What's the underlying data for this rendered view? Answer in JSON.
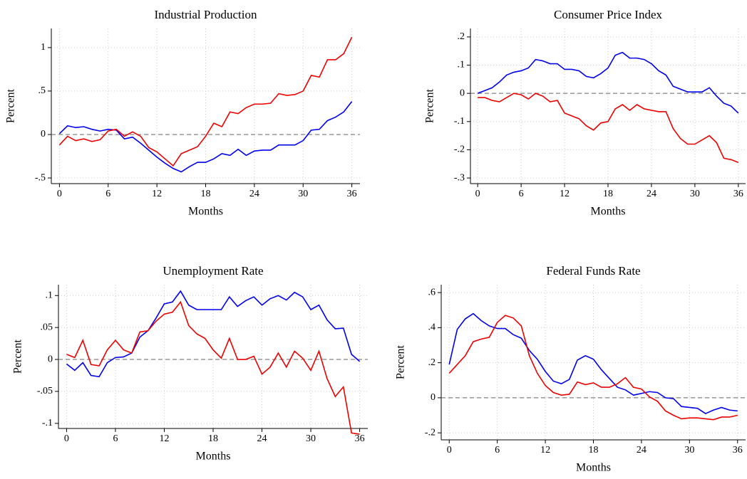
{
  "chart_data": [
    {
      "type": "line",
      "title": "Industrial Production",
      "x_label": "Months",
      "y_label": "Percent",
      "x": [
        0,
        1,
        2,
        3,
        4,
        5,
        6,
        7,
        8,
        9,
        10,
        11,
        12,
        13,
        14,
        15,
        16,
        17,
        18,
        19,
        20,
        21,
        22,
        23,
        24,
        25,
        26,
        27,
        28,
        29,
        30,
        31,
        32,
        33,
        34,
        35,
        36
      ],
      "xlim": [
        -1,
        37
      ],
      "xticks": [
        0,
        6,
        12,
        18,
        24,
        30,
        36
      ],
      "ylim": [
        -0.565,
        1.22
      ],
      "yticks": [
        {
          "value": -0.5,
          "label": "-.5"
        },
        0,
        {
          "value": 0.5,
          "label": ".5"
        },
        1
      ],
      "grid": true,
      "reference_line": 0,
      "series": [
        {
          "color": "#0000ee",
          "values": [
            0.01,
            0.1,
            0.08,
            0.09,
            0.06,
            0.04,
            0.06,
            0.05,
            -0.05,
            -0.03,
            -0.1,
            -0.18,
            -0.26,
            -0.33,
            -0.39,
            -0.43,
            -0.37,
            -0.32,
            -0.32,
            -0.28,
            -0.22,
            -0.24,
            -0.17,
            -0.24,
            -0.19,
            -0.18,
            -0.18,
            -0.12,
            -0.12,
            -0.12,
            -0.07,
            0.05,
            0.06,
            0.16,
            0.2,
            0.26,
            0.38
          ]
        },
        {
          "color": "#ee0000",
          "values": [
            -0.12,
            -0.02,
            -0.07,
            -0.05,
            -0.08,
            -0.06,
            0.04,
            0.06,
            -0.02,
            0.03,
            -0.02,
            -0.15,
            -0.2,
            -0.28,
            -0.36,
            -0.22,
            -0.18,
            -0.14,
            -0.02,
            0.13,
            0.09,
            0.26,
            0.24,
            0.31,
            0.35,
            0.35,
            0.36,
            0.47,
            0.45,
            0.46,
            0.5,
            0.68,
            0.66,
            0.86,
            0.86,
            0.93,
            1.12
          ]
        }
      ]
    },
    {
      "type": "line",
      "title": "Consumer Price Index",
      "x_label": "Months",
      "y_label": "Percent",
      "x": [
        0,
        1,
        2,
        3,
        4,
        5,
        6,
        7,
        8,
        9,
        10,
        11,
        12,
        13,
        14,
        15,
        16,
        17,
        18,
        19,
        20,
        21,
        22,
        23,
        24,
        25,
        26,
        27,
        28,
        29,
        30,
        31,
        32,
        33,
        34,
        35,
        36
      ],
      "xlim": [
        -1,
        37
      ],
      "xticks": [
        0,
        6,
        12,
        18,
        24,
        30,
        36
      ],
      "ylim": [
        -0.32,
        0.23
      ],
      "yticks": [
        {
          "value": -0.3,
          "label": "-.3"
        },
        {
          "value": -0.2,
          "label": "-.2"
        },
        {
          "value": -0.1,
          "label": "-.1"
        },
        0,
        {
          "value": 0.1,
          "label": ".1"
        },
        {
          "value": 0.2,
          "label": ".2"
        }
      ],
      "grid": true,
      "reference_line": 0,
      "series": [
        {
          "color": "#0000ee",
          "values": [
            0.0,
            0.01,
            0.02,
            0.04,
            0.065,
            0.075,
            0.08,
            0.09,
            0.12,
            0.115,
            0.105,
            0.105,
            0.085,
            0.085,
            0.08,
            0.06,
            0.055,
            0.07,
            0.09,
            0.135,
            0.145,
            0.125,
            0.125,
            0.12,
            0.105,
            0.08,
            0.065,
            0.025,
            0.015,
            0.005,
            0.005,
            0.005,
            0.02,
            -0.01,
            -0.035,
            -0.045,
            -0.07
          ]
        },
        {
          "color": "#ee0000",
          "values": [
            -0.015,
            -0.015,
            -0.025,
            -0.03,
            -0.015,
            0.0,
            -0.005,
            -0.02,
            0.0,
            -0.01,
            -0.03,
            -0.025,
            -0.07,
            -0.08,
            -0.09,
            -0.115,
            -0.13,
            -0.105,
            -0.1,
            -0.055,
            -0.04,
            -0.06,
            -0.04,
            -0.055,
            -0.06,
            -0.065,
            -0.065,
            -0.125,
            -0.16,
            -0.18,
            -0.18,
            -0.165,
            -0.15,
            -0.175,
            -0.23,
            -0.235,
            -0.245
          ]
        }
      ]
    },
    {
      "type": "line",
      "title": "Unemployment Rate",
      "x_label": "Months",
      "y_label": "Percent",
      "x": [
        0,
        1,
        2,
        3,
        4,
        5,
        6,
        7,
        8,
        9,
        10,
        11,
        12,
        13,
        14,
        15,
        16,
        17,
        18,
        19,
        20,
        21,
        22,
        23,
        24,
        25,
        26,
        27,
        28,
        29,
        30,
        31,
        32,
        33,
        34,
        35,
        36
      ],
      "xlim": [
        -1,
        37
      ],
      "xticks": [
        0,
        6,
        12,
        18,
        24,
        30,
        36
      ],
      "ylim": [
        -0.108,
        0.117
      ],
      "yticks": [
        {
          "value": -0.1,
          "label": "-.1"
        },
        {
          "value": -0.05,
          "label": "-.05"
        },
        0,
        {
          "value": 0.05,
          "label": ".05"
        },
        {
          "value": 0.1,
          "label": ".1"
        }
      ],
      "grid": true,
      "reference_line": 0,
      "series": [
        {
          "color": "#0000ee",
          "values": [
            -0.007,
            -0.017,
            -0.005,
            -0.025,
            -0.027,
            -0.005,
            0.003,
            0.004,
            0.01,
            0.035,
            0.045,
            0.065,
            0.087,
            0.09,
            0.107,
            0.085,
            0.078,
            0.078,
            0.078,
            0.078,
            0.098,
            0.083,
            0.092,
            0.098,
            0.085,
            0.095,
            0.1,
            0.093,
            0.105,
            0.098,
            0.078,
            0.085,
            0.062,
            0.048,
            0.049,
            0.008,
            -0.003
          ]
        },
        {
          "color": "#ee0000",
          "values": [
            0.008,
            0.003,
            0.03,
            -0.008,
            -0.01,
            0.015,
            0.03,
            0.015,
            0.01,
            0.043,
            0.045,
            0.06,
            0.071,
            0.074,
            0.09,
            0.053,
            0.04,
            0.033,
            0.015,
            0.002,
            0.033,
            0.0,
            0.0,
            0.005,
            -0.023,
            -0.012,
            0.01,
            -0.012,
            0.013,
            0.002,
            -0.017,
            0.013,
            -0.03,
            -0.058,
            -0.043,
            -0.115,
            -0.117
          ]
        }
      ]
    },
    {
      "type": "line",
      "title": "Federal Funds Rate",
      "x_label": "Months",
      "y_label": "Percent",
      "x": [
        0,
        1,
        2,
        3,
        4,
        5,
        6,
        7,
        8,
        9,
        10,
        11,
        12,
        13,
        14,
        15,
        16,
        17,
        18,
        19,
        20,
        21,
        22,
        23,
        24,
        25,
        26,
        27,
        28,
        29,
        30,
        31,
        32,
        33,
        34,
        35,
        36
      ],
      "xlim": [
        -1,
        37
      ],
      "xticks": [
        0,
        6,
        12,
        18,
        24,
        30,
        36
      ],
      "ylim": [
        -0.24,
        0.645
      ],
      "yticks": [
        {
          "value": -0.2,
          "label": "-.2"
        },
        0,
        {
          "value": 0.2,
          "label": ".2"
        },
        {
          "value": 0.4,
          "label": ".4"
        },
        {
          "value": 0.6,
          "label": ".6"
        }
      ],
      "grid": true,
      "reference_line": 0,
      "series": [
        {
          "color": "#0000ee",
          "values": [
            0.19,
            0.39,
            0.45,
            0.48,
            0.44,
            0.41,
            0.395,
            0.395,
            0.36,
            0.34,
            0.27,
            0.22,
            0.15,
            0.095,
            0.08,
            0.105,
            0.215,
            0.24,
            0.22,
            0.16,
            0.11,
            0.06,
            0.045,
            0.015,
            0.025,
            0.035,
            0.03,
            0.0,
            -0.005,
            -0.05,
            -0.055,
            -0.06,
            -0.09,
            -0.07,
            -0.055,
            -0.07,
            -0.075
          ]
        },
        {
          "color": "#ee0000",
          "values": [
            0.14,
            0.19,
            0.24,
            0.32,
            0.335,
            0.345,
            0.43,
            0.47,
            0.455,
            0.41,
            0.24,
            0.14,
            0.07,
            0.03,
            0.015,
            0.02,
            0.09,
            0.075,
            0.085,
            0.06,
            0.06,
            0.08,
            0.115,
            0.06,
            0.05,
            0.005,
            -0.02,
            -0.075,
            -0.1,
            -0.12,
            -0.115,
            -0.115,
            -0.12,
            -0.125,
            -0.11,
            -0.11,
            -0.1
          ]
        }
      ]
    }
  ]
}
